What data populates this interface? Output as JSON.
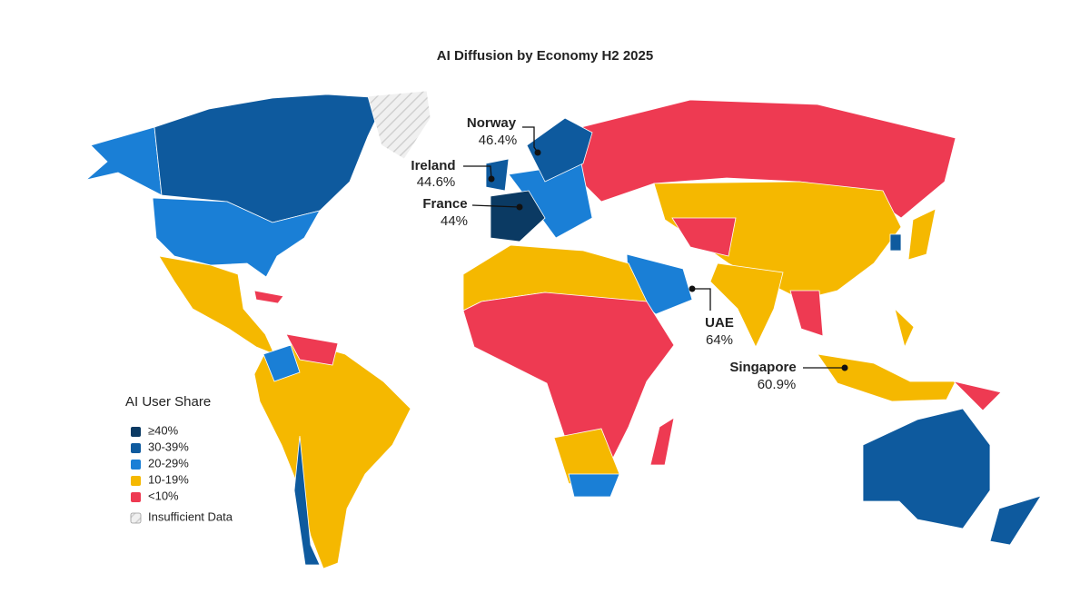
{
  "title": "AI Diffusion by Economy H2 2025",
  "legend": {
    "title": "AI User Share",
    "items": [
      {
        "label": "≥40%",
        "color": "#0b3a63"
      },
      {
        "label": "30-39%",
        "color": "#0e5a9e"
      },
      {
        "label": "20-29%",
        "color": "#1a7fd6"
      },
      {
        "label": "10-19%",
        "color": "#f5b800"
      },
      {
        "label": "<10%",
        "color": "#ee3a52"
      }
    ],
    "insufficient": "Insufficient Data"
  },
  "callouts": [
    {
      "name": "Norway",
      "value": "46.4%"
    },
    {
      "name": "Ireland",
      "value": "44.6%"
    },
    {
      "name": "France",
      "value": "44%"
    },
    {
      "name": "UAE",
      "value": "64%"
    },
    {
      "name": "Singapore",
      "value": "60.9%"
    }
  ]
}
